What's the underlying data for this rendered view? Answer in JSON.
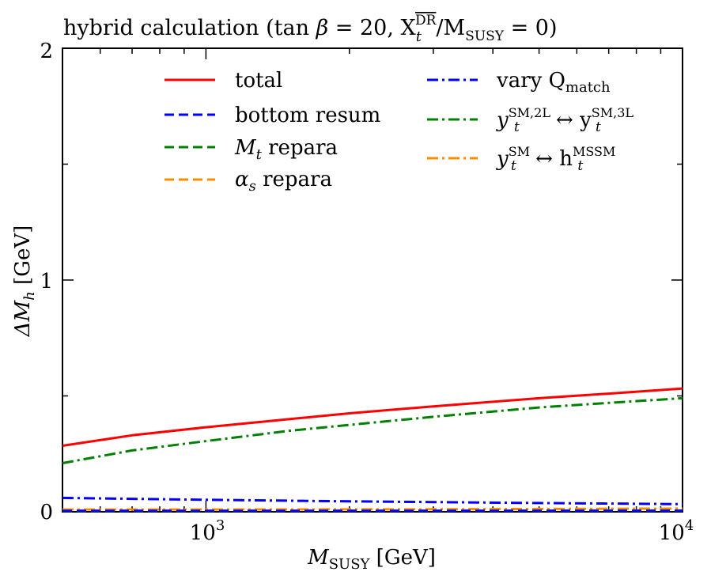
{
  "chart_data": {
    "type": "line",
    "title": {
      "prefix": "hybrid calculation (tan ",
      "beta": "β",
      "eq": " = 20, X",
      "x_sub": "t",
      "x_sup": "DR",
      "slash": "/M",
      "m_sub": "SUSY",
      "suffix": " = 0)"
    },
    "xlabel": {
      "main": "M",
      "sub": "SUSY",
      "unit": " [GeV]"
    },
    "ylabel": {
      "delta": "ΔM",
      "sub": "h",
      "unit": " [GeV]"
    },
    "x_scale": "log",
    "xlim": [
      500,
      10000
    ],
    "ylim": [
      0,
      2
    ],
    "x_ticks": [
      {
        "value": 1000,
        "base": "10",
        "exp": "3"
      },
      {
        "value": 10000,
        "base": "10",
        "exp": "4"
      }
    ],
    "y_ticks": [
      {
        "value": 0,
        "label": "0"
      },
      {
        "value": 1,
        "label": "1"
      },
      {
        "value": 2,
        "label": "2"
      }
    ],
    "legend_position": "top",
    "series": [
      {
        "key": "total",
        "name": "total",
        "color": "#ff0000",
        "dash": "solid",
        "x": [
          500,
          700,
          1000,
          1500,
          2000,
          3000,
          5000,
          7000,
          10000
        ],
        "y": [
          0.285,
          0.33,
          0.365,
          0.4,
          0.425,
          0.455,
          0.49,
          0.51,
          0.532
        ]
      },
      {
        "key": "bottom",
        "name": "bottom resum",
        "color": "#0000ff",
        "dash": "dashed",
        "x": [
          500,
          1000,
          3000,
          10000
        ],
        "y": [
          0.004,
          0.004,
          0.004,
          0.004
        ]
      },
      {
        "key": "mt",
        "name": "M_t repara",
        "color": "#008000",
        "dash": "dashed",
        "x": [
          500,
          1000,
          3000,
          10000
        ],
        "y": [
          0.003,
          0.003,
          0.004,
          0.005
        ]
      },
      {
        "key": "alphas",
        "name": "α_s repara",
        "color": "#ff8c00",
        "dash": "dashed",
        "x": [
          500,
          1000,
          3000,
          10000
        ],
        "y": [
          0.005,
          0.005,
          0.005,
          0.006
        ]
      },
      {
        "key": "qmatch",
        "name": "vary Q_match",
        "color": "#0000ff",
        "dash": "dashdot",
        "x": [
          500,
          700,
          1000,
          2000,
          3000,
          5000,
          10000
        ],
        "y": [
          0.06,
          0.056,
          0.052,
          0.045,
          0.042,
          0.038,
          0.033
        ]
      },
      {
        "key": "yt",
        "name": "y_t SM,2L ↔ y_t SM,3L",
        "color": "#008000",
        "dash": "dashdot",
        "x": [
          500,
          700,
          1000,
          1500,
          2000,
          3000,
          5000,
          7000,
          10000
        ],
        "y": [
          0.21,
          0.265,
          0.305,
          0.35,
          0.375,
          0.41,
          0.45,
          0.47,
          0.49
        ]
      },
      {
        "key": "ythmssm",
        "name": "y_t SM ↔ h_t MSSM",
        "color": "#ff8c00",
        "dash": "dashdot",
        "x": [
          500,
          1000,
          3000,
          10000
        ],
        "y": [
          0.01,
          0.01,
          0.011,
          0.014
        ]
      }
    ],
    "legend": {
      "total": "total",
      "bottom": "bottom resum",
      "mt_main": "M",
      "mt_sub": "t",
      "mt_rest": " repara",
      "alphas_main": "α",
      "alphas_sub": "s",
      "alphas_rest": " repara",
      "qmatch_pre": "vary Q",
      "qmatch_sub": "match",
      "yt_a": "y",
      "yt_a_sup": "SM,2L",
      "yt_a_sub": "t",
      "yt_arrow": " ↔ y",
      "yt_b_sup": "SM,3L",
      "yt_b_sub": "t",
      "yh_a": "y",
      "yh_a_sup": "SM",
      "yh_a_sub": "t",
      "yh_arrow": " ↔ h",
      "yh_b_sup": "MSSM",
      "yh_b_sub": "t"
    }
  }
}
